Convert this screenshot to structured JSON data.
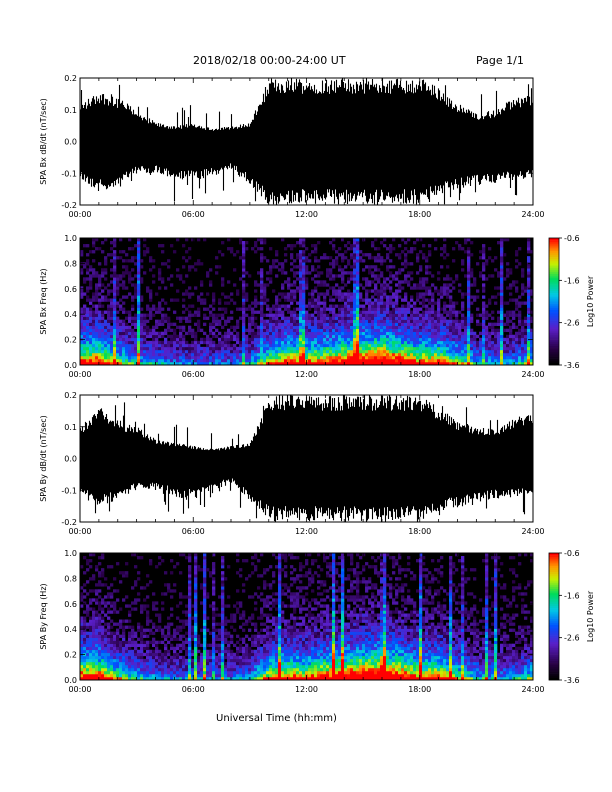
{
  "header": {
    "date_range": "2018/02/18  00:00-24:00 UT",
    "page": "Page 1/1"
  },
  "x_axis": {
    "label": "Universal Time (hh:mm)",
    "ticks": [
      "00:00",
      "06:00",
      "12:00",
      "18:00",
      "24:00"
    ],
    "range_hours": [
      0,
      24
    ]
  },
  "chart_data": [
    {
      "type": "line",
      "ylabel": "SPA Bx dB/dt (nT/sec)",
      "ylim": [
        -0.2,
        0.2
      ],
      "yticks": [
        "-0.2",
        "-0.1",
        "0.0",
        "0.1",
        "0.2"
      ],
      "color": "#000000",
      "series": [
        {
          "x": [
            0,
            1,
            2,
            3,
            4,
            5,
            6,
            7,
            8,
            9,
            10,
            11,
            12,
            13,
            14,
            15,
            16,
            17,
            18,
            19,
            20,
            21,
            22,
            23,
            24
          ],
          "envelope_upper": [
            0.12,
            0.16,
            0.14,
            0.1,
            0.06,
            0.05,
            0.06,
            0.04,
            0.05,
            0.06,
            0.2,
            0.2,
            0.2,
            0.2,
            0.2,
            0.2,
            0.2,
            0.2,
            0.2,
            0.17,
            0.12,
            0.09,
            0.1,
            0.14,
            0.15
          ],
          "envelope_lower": [
            -0.12,
            -0.16,
            -0.14,
            -0.1,
            -0.1,
            -0.12,
            -0.12,
            -0.11,
            -0.09,
            -0.14,
            -0.2,
            -0.2,
            -0.2,
            -0.2,
            -0.2,
            -0.2,
            -0.2,
            -0.2,
            -0.2,
            -0.17,
            -0.15,
            -0.14,
            -0.13,
            -0.12,
            -0.12
          ]
        }
      ]
    },
    {
      "type": "heatmap",
      "ylabel": "SPA Bx Freq (Hz)",
      "ylim": [
        0,
        1
      ],
      "yticks": [
        "0.0",
        "0.2",
        "0.4",
        "0.6",
        "0.8",
        "1.0"
      ],
      "colorbar": {
        "label": "Log10 Power",
        "range": [
          -3.6,
          -0.6
        ],
        "ticks": [
          "-0.6",
          "-1.6",
          "-2.6",
          "-3.6"
        ]
      },
      "activity_by_hour": [
        0.75,
        0.8,
        0.55,
        0.4,
        0.35,
        0.3,
        0.3,
        0.3,
        0.3,
        0.35,
        0.6,
        0.75,
        0.7,
        0.75,
        0.85,
        0.9,
        0.95,
        0.85,
        0.7,
        0.75,
        0.55,
        0.4,
        0.35,
        0.35,
        0.5
      ]
    },
    {
      "type": "line",
      "ylabel": "SPA By dB/dt (nT/sec)",
      "ylim": [
        -0.2,
        0.2
      ],
      "yticks": [
        "-0.2",
        "-0.1",
        "0.0",
        "0.1",
        "0.2"
      ],
      "color": "#000000",
      "series": [
        {
          "x": [
            0,
            1,
            2,
            3,
            4,
            5,
            6,
            7,
            8,
            9,
            10,
            11,
            12,
            13,
            14,
            15,
            16,
            17,
            18,
            19,
            20,
            21,
            22,
            23,
            24
          ],
          "envelope_upper": [
            0.1,
            0.16,
            0.12,
            0.1,
            0.06,
            0.05,
            0.04,
            0.03,
            0.04,
            0.05,
            0.2,
            0.2,
            0.2,
            0.2,
            0.2,
            0.2,
            0.2,
            0.2,
            0.2,
            0.16,
            0.12,
            0.1,
            0.09,
            0.13,
            0.14
          ],
          "envelope_lower": [
            -0.12,
            -0.15,
            -0.13,
            -0.1,
            -0.1,
            -0.12,
            -0.13,
            -0.1,
            -0.08,
            -0.14,
            -0.2,
            -0.2,
            -0.2,
            -0.2,
            -0.2,
            -0.2,
            -0.2,
            -0.2,
            -0.2,
            -0.17,
            -0.16,
            -0.14,
            -0.13,
            -0.12,
            -0.12
          ]
        }
      ]
    },
    {
      "type": "heatmap",
      "ylabel": "SPA By Freq (Hz)",
      "ylim": [
        0,
        1
      ],
      "yticks": [
        "0.0",
        "0.2",
        "0.4",
        "0.6",
        "0.8",
        "1.0"
      ],
      "colorbar": {
        "label": "Log10 Power",
        "range": [
          -3.6,
          -0.6
        ],
        "ticks": [
          "-0.6",
          "-1.6",
          "-2.6",
          "-3.6"
        ]
      },
      "activity_by_hour": [
        0.8,
        0.8,
        0.55,
        0.4,
        0.35,
        0.3,
        0.3,
        0.3,
        0.3,
        0.35,
        0.65,
        0.75,
        0.7,
        0.8,
        0.85,
        0.95,
        0.95,
        0.85,
        0.7,
        0.75,
        0.55,
        0.4,
        0.35,
        0.35,
        0.5
      ]
    }
  ]
}
